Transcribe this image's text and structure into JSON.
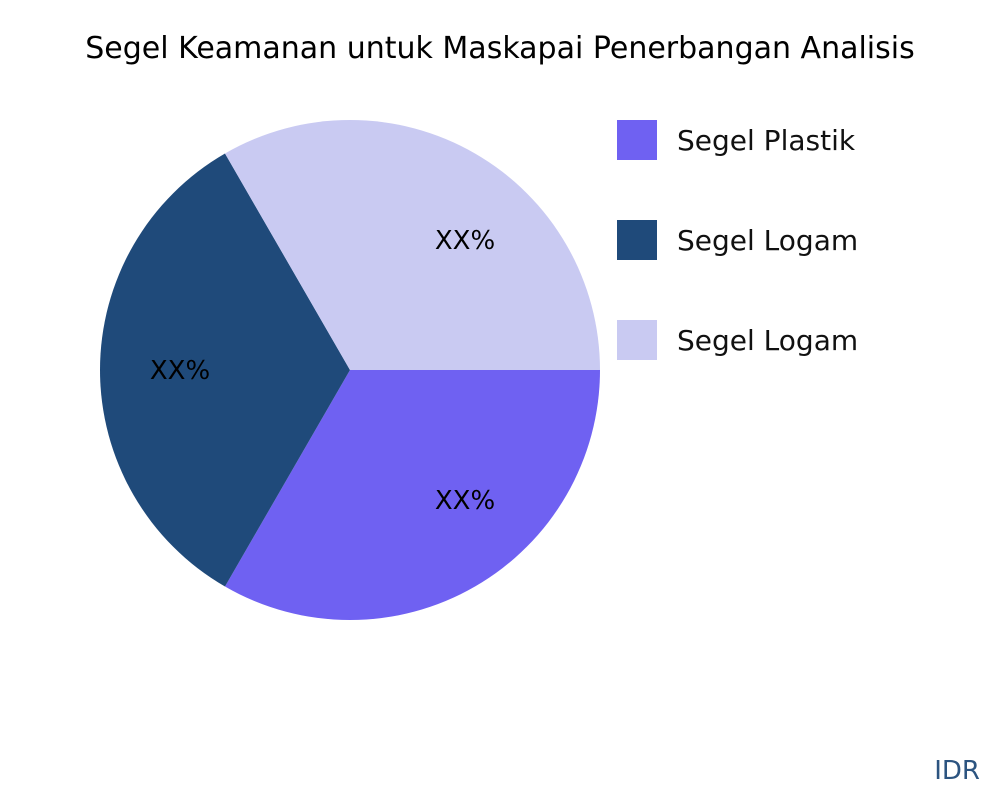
{
  "chart_data": {
    "type": "pie",
    "title": "Segel Keamanan untuk Maskapai Penerbangan Analisis",
    "slices": [
      {
        "name": "Segel Plastik",
        "value": 33.33,
        "label": "XX%",
        "color": "#6f61f2"
      },
      {
        "name": "Segel Logam",
        "value": 33.33,
        "label": "XX%",
        "color": "#1f4a7a"
      },
      {
        "name": "Segel Logam",
        "value": 33.33,
        "label": "XX%",
        "color": "#c9caf2"
      }
    ],
    "legend_placement": "right"
  },
  "credit": "IDR"
}
